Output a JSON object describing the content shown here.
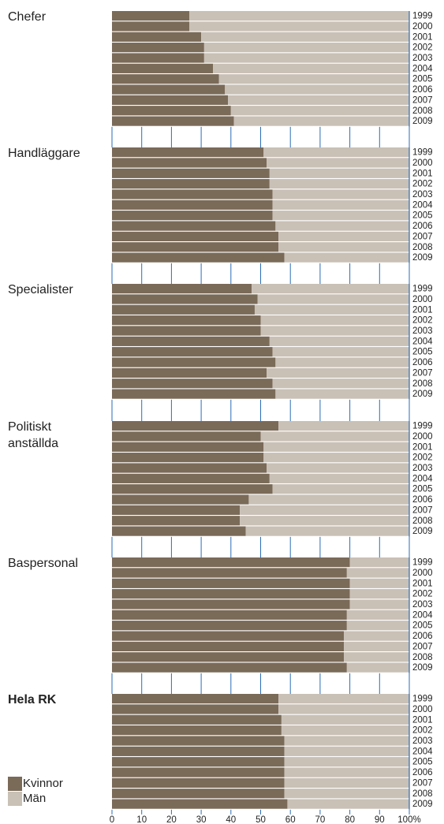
{
  "chart_data": [
    {
      "type": "stacked-barh",
      "title": "Chefer",
      "categories": [
        "1999",
        "2000",
        "2001",
        "2002",
        "2003",
        "2004",
        "2005",
        "2006",
        "2007",
        "2008",
        "2009"
      ],
      "series": [
        {
          "name": "Kvinnor",
          "color": "#7a6a58",
          "values": [
            26,
            26,
            30,
            31,
            31,
            34,
            36,
            38,
            39,
            40,
            41
          ]
        },
        {
          "name": "Män",
          "color": "#c9c0b6",
          "values": [
            74,
            74,
            70,
            69,
            69,
            66,
            64,
            62,
            61,
            60,
            59
          ]
        }
      ],
      "xlim": [
        0,
        100
      ],
      "xticks": [
        0,
        10,
        20,
        30,
        40,
        50,
        60,
        70,
        80,
        90,
        {
          "value": 100,
          "label": "100%"
        }
      ]
    },
    {
      "type": "stacked-barh",
      "title": "Handläggare",
      "categories": [
        "1999",
        "2000",
        "2001",
        "2002",
        "2003",
        "2004",
        "2005",
        "2006",
        "2007",
        "2008",
        "2009"
      ],
      "series": [
        {
          "name": "Kvinnor",
          "color": "#7a6a58",
          "values": [
            51,
            52,
            53,
            53,
            54,
            54,
            54,
            55,
            56,
            56,
            58
          ]
        },
        {
          "name": "Män",
          "color": "#c9c0b6",
          "values": [
            49,
            48,
            47,
            47,
            46,
            46,
            46,
            45,
            44,
            44,
            42
          ]
        }
      ],
      "xlim": [
        0,
        100
      ],
      "xticks": [
        0,
        10,
        20,
        30,
        40,
        50,
        60,
        70,
        80,
        90,
        {
          "value": 100,
          "label": "100%"
        }
      ]
    },
    {
      "type": "stacked-barh",
      "title": "Specialister",
      "categories": [
        "1999",
        "2000",
        "2001",
        "2002",
        "2003",
        "2004",
        "2005",
        "2006",
        "2007",
        "2008",
        "2009"
      ],
      "series": [
        {
          "name": "Kvinnor",
          "color": "#7a6a58",
          "values": [
            47,
            49,
            48,
            50,
            50,
            53,
            54,
            55,
            52,
            54,
            55
          ]
        },
        {
          "name": "Män",
          "color": "#c9c0b6",
          "values": [
            53,
            51,
            52,
            50,
            50,
            47,
            46,
            45,
            48,
            46,
            45
          ]
        }
      ],
      "xlim": [
        0,
        100
      ],
      "xticks": [
        0,
        10,
        20,
        30,
        40,
        50,
        60,
        70,
        80,
        90,
        {
          "value": 100,
          "label": "100%"
        }
      ]
    },
    {
      "type": "stacked-barh",
      "title": "Politiskt anställda",
      "categories": [
        "1999",
        "2000",
        "2001",
        "2002",
        "2003",
        "2004",
        "2005",
        "2006",
        "2007",
        "2008",
        "2009"
      ],
      "series": [
        {
          "name": "Kvinnor",
          "color": "#7a6a58",
          "values": [
            56,
            50,
            51,
            51,
            52,
            53,
            54,
            46,
            43,
            43,
            45
          ]
        },
        {
          "name": "Män",
          "color": "#c9c0b6",
          "values": [
            44,
            50,
            49,
            49,
            48,
            47,
            46,
            54,
            57,
            57,
            55
          ]
        }
      ],
      "xlim": [
        0,
        100
      ],
      "xticks": [
        0,
        10,
        20,
        30,
        40,
        50,
        60,
        70,
        80,
        90,
        {
          "value": 100,
          "label": "100%"
        }
      ]
    },
    {
      "type": "stacked-barh",
      "title": "Baspersonal",
      "categories": [
        "1999",
        "2000",
        "2001",
        "2002",
        "2003",
        "2004",
        "2005",
        "2006",
        "2007",
        "2008",
        "2009"
      ],
      "series": [
        {
          "name": "Kvinnor",
          "color": "#7a6a58",
          "values": [
            80,
            79,
            80,
            80,
            80,
            79,
            79,
            78,
            78,
            78,
            79
          ]
        },
        {
          "name": "Män",
          "color": "#c9c0b6",
          "values": [
            20,
            21,
            20,
            20,
            20,
            21,
            21,
            22,
            22,
            22,
            21
          ]
        }
      ],
      "xlim": [
        0,
        100
      ],
      "xticks": [
        0,
        10,
        20,
        30,
        40,
        50,
        60,
        70,
        80,
        90,
        {
          "value": 100,
          "label": "100%"
        }
      ]
    },
    {
      "type": "stacked-barh",
      "title": "Hela RK",
      "categories": [
        "1999",
        "2000",
        "2001",
        "2002",
        "2003",
        "2004",
        "2005",
        "2006",
        "2007",
        "2008",
        "2009"
      ],
      "series": [
        {
          "name": "Kvinnor",
          "color": "#7a6a58",
          "values": [
            56,
            56,
            57,
            57,
            58,
            58,
            58,
            58,
            58,
            58,
            59
          ]
        },
        {
          "name": "Män",
          "color": "#c9c0b6",
          "values": [
            44,
            44,
            43,
            43,
            42,
            42,
            42,
            42,
            42,
            42,
            41
          ]
        }
      ],
      "xlim": [
        0,
        100
      ],
      "xticks": [
        0,
        10,
        20,
        30,
        40,
        50,
        60,
        70,
        80,
        90,
        {
          "value": 100,
          "label": "100%"
        }
      ]
    }
  ]
}
